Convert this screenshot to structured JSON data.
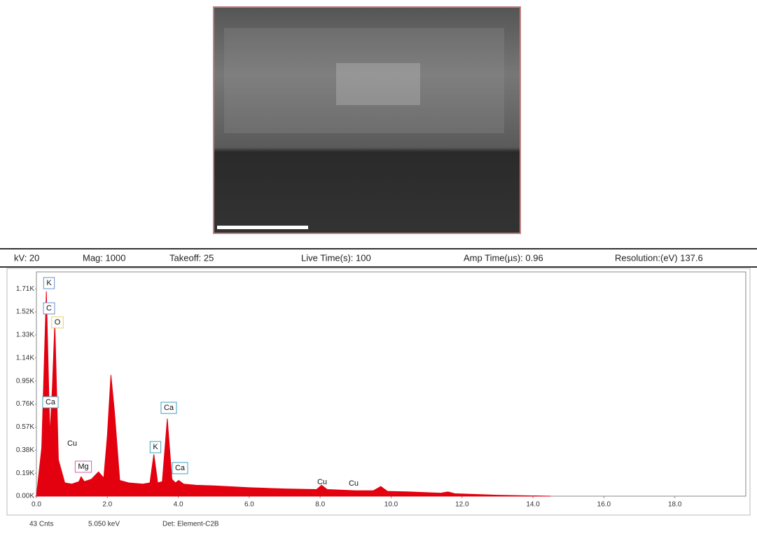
{
  "header_fields": [
    "kV: 20",
    "Mag: 1000",
    "Takeoff: 25",
    "Live Time(s): 100",
    "Amp Time(µs): 0.96",
    "Resolution:(eV) 137.6"
  ],
  "footer_fields": [
    "43 Cnts",
    "5.050 keV",
    "Det: Element-C2B"
  ],
  "chart_data": {
    "type": "area",
    "x": [
      0,
      0.15,
      0.28,
      0.38,
      0.45,
      0.52,
      0.62,
      0.8,
      1.0,
      1.2,
      1.26,
      1.35,
      1.55,
      1.75,
      1.9,
      2.0,
      2.1,
      2.2,
      2.35,
      2.6,
      3.0,
      3.2,
      3.31,
      3.42,
      3.55,
      3.69,
      3.82,
      3.92,
      4.01,
      4.15,
      4.5,
      5.0,
      6.0,
      7.0,
      7.9,
      8.04,
      8.2,
      9.0,
      9.5,
      9.71,
      9.9,
      10.5,
      11.4,
      11.6,
      11.8,
      13.0,
      14.5
    ],
    "values": [
      0,
      400,
      1690,
      500,
      900,
      1430,
      300,
      110,
      100,
      120,
      160,
      120,
      140,
      200,
      150,
      500,
      1000,
      700,
      130,
      110,
      100,
      110,
      345,
      110,
      120,
      640,
      140,
      110,
      130,
      100,
      90,
      85,
      70,
      60,
      55,
      90,
      55,
      45,
      45,
      80,
      40,
      35,
      25,
      35,
      20,
      8,
      0
    ],
    "color": "#e3000f",
    "xlim": [
      0,
      20
    ],
    "xticks": [
      {
        "value": 0,
        "label": "0.0"
      },
      {
        "value": 2,
        "label": "2.0"
      },
      {
        "value": 4,
        "label": "4.0"
      },
      {
        "value": 6,
        "label": "6.0"
      },
      {
        "value": 8,
        "label": "8.0"
      },
      {
        "value": 10,
        "label": "10.0"
      },
      {
        "value": 12,
        "label": "12.0"
      },
      {
        "value": 14,
        "label": "14.0"
      },
      {
        "value": 16,
        "label": "16.0"
      },
      {
        "value": 18,
        "label": "18.0"
      }
    ],
    "ylim": [
      0,
      1850
    ],
    "yticks": [
      {
        "value": 0,
        "label": "0.00K"
      },
      {
        "value": 190,
        "label": "0.19K"
      },
      {
        "value": 380,
        "label": "0.38K"
      },
      {
        "value": 570,
        "label": "0.57K"
      },
      {
        "value": 760,
        "label": "0.76K"
      },
      {
        "value": 950,
        "label": "0.95K"
      },
      {
        "value": 1140,
        "label": "1.14K"
      },
      {
        "value": 1330,
        "label": "1.33K"
      },
      {
        "value": 1520,
        "label": "1.52K"
      },
      {
        "value": 1710,
        "label": "1.71K"
      }
    ],
    "peak_labels": [
      "K",
      "C",
      "O",
      "Ca",
      "Cu",
      "Mg",
      "K",
      "Ca",
      "Ca",
      "Cu",
      "Cu"
    ]
  }
}
